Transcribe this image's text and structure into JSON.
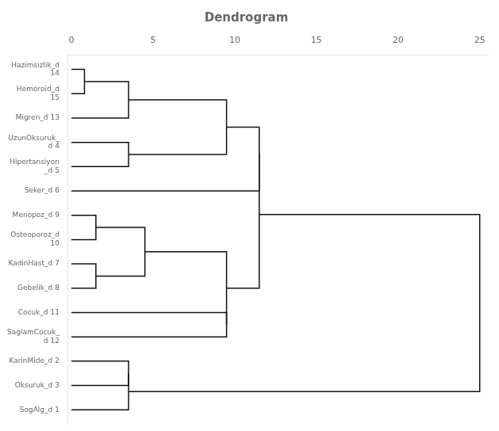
{
  "chart_data": {
    "type": "dendrogram",
    "title": "Dendrogram",
    "categories": [
      "Hazimsizlik_d\n14",
      "Hemoroid_d\n15",
      "Migren_d 13",
      "UzunOksuruk_\nd 4",
      "Hipertansiyon\n_d 5",
      "Seker_d 6",
      "Menopoz_d 9",
      "Osteoporoz_d\n10",
      "KadinHast_d 7",
      "Gebelik_d 8",
      "Cocuk_d 11",
      "SaglamCocuk_\nd 12",
      "KarinMide_d 2",
      "Oksuruk_d 3",
      "SogAlg_d 1"
    ],
    "merges": [
      [
        14,
        13,
        0,
        0,
        0.8
      ],
      [
        13.5,
        12,
        0.8,
        0,
        3.5
      ],
      [
        11,
        10,
        0,
        0,
        3.5
      ],
      [
        12.75,
        10.5,
        3.5,
        3.5,
        9.5
      ],
      [
        11.625,
        9,
        9.5,
        0,
        11.5
      ],
      [
        8,
        7,
        0,
        0,
        1.5
      ],
      [
        6,
        5,
        0,
        0,
        1.5
      ],
      [
        7.5,
        5.5,
        1.5,
        1.5,
        4.5
      ],
      [
        4,
        3,
        0,
        0,
        9.5
      ],
      [
        6.5,
        3.5,
        4.5,
        9.5,
        9.5
      ],
      [
        10.5625,
        5.0,
        11.5,
        9.5,
        11.5
      ],
      [
        2,
        1,
        0,
        0,
        3.5
      ],
      [
        1.5,
        0,
        3.5,
        0,
        3.5
      ],
      [
        8.03125,
        0.75,
        11.5,
        3.5,
        25.0
      ]
    ],
    "color": "#111111",
    "xlim": [
      -0.2,
      25.5
    ],
    "xticks": [
      0,
      5,
      10,
      15,
      20,
      25
    ],
    "ylim": [
      -0.6,
      14.6
    ],
    "grid": false
  }
}
